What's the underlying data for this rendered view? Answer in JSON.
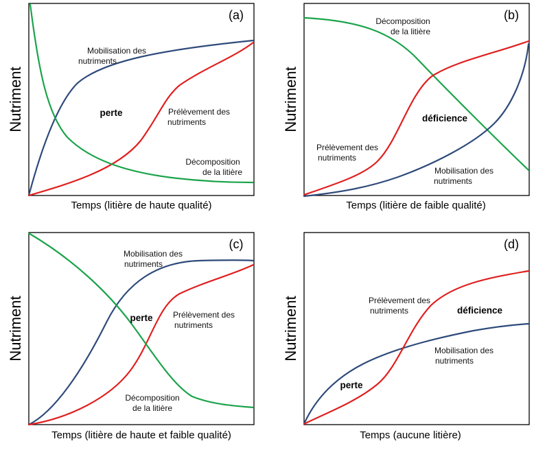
{
  "colors": {
    "mobilisation": "#2e4a7a",
    "prelevement": "#e01f1f",
    "decomposition": "#1aa34a"
  },
  "panels": [
    {
      "tag": "(a)",
      "ylabel": "Nutriment",
      "xlabel": "Temps (litière de haute qualité)",
      "mobilisation": [
        "Mobilisation des",
        "nutriments"
      ],
      "prelevement": [
        "Prélèvement des",
        "nutriments"
      ],
      "decomposition": [
        "Décomposition",
        "de la litière"
      ],
      "zone": "perte"
    },
    {
      "tag": "(b)",
      "ylabel": "Nutriment",
      "xlabel": "Temps (litière de faible qualité)",
      "mobilisation": [
        "Mobilisation des",
        "nutriments"
      ],
      "prelevement": [
        "Prélèvement des",
        "nutriments"
      ],
      "decomposition": [
        "Décomposition",
        "de la litière"
      ],
      "zone": "déficience"
    },
    {
      "tag": "(c)",
      "ylabel": "Nutriment",
      "xlabel": "Temps (litière de haute et faible qualité)",
      "mobilisation": [
        "Mobilisation des",
        "nutriments"
      ],
      "prelevement": [
        "Prélèvement des",
        "nutriments"
      ],
      "decomposition": [
        "Décomposition",
        "de la litière"
      ],
      "zone": "perte"
    },
    {
      "tag": "(d)",
      "ylabel": "Nutriment",
      "xlabel": "Temps (aucune litière)",
      "mobilisation": [
        "Mobilisation des",
        "nutriments"
      ],
      "prelevement": [
        "Prélèvement des",
        "nutriments"
      ],
      "zone_deficit": "déficience",
      "zone_loss": "perte"
    }
  ]
}
